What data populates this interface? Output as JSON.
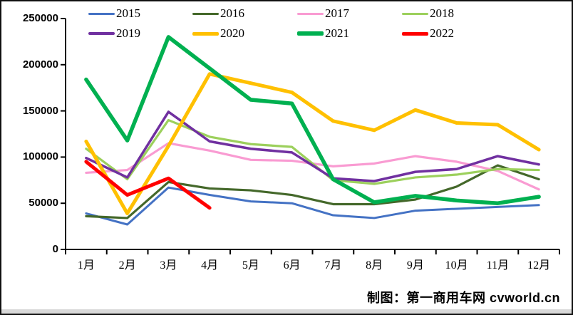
{
  "chart_data": {
    "type": "line",
    "title": "",
    "xlabel": "",
    "ylabel": "",
    "legend_position": "top",
    "grid": false,
    "ylim": [
      0,
      250000
    ],
    "ytick_interval": 50000,
    "ytick_labels": [
      "0",
      "50000",
      "100000",
      "150000",
      "200000",
      "250000"
    ],
    "x_categories": [
      "1月",
      "2月",
      "3月",
      "4月",
      "5月",
      "6月",
      "7月",
      "8月",
      "9月",
      "10月",
      "11月",
      "12月"
    ],
    "series": [
      {
        "name": "2015",
        "color": "#4472C4",
        "line_width": 3,
        "values": [
          39000,
          27000,
          67000,
          59000,
          52000,
          50000,
          37000,
          34000,
          42000,
          44000,
          46000,
          48000
        ]
      },
      {
        "name": "2016",
        "color": "#44682A",
        "line_width": 3.2,
        "values": [
          36000,
          34000,
          73000,
          66000,
          64000,
          59000,
          49000,
          49000,
          54000,
          68000,
          91000,
          76000
        ]
      },
      {
        "name": "2017",
        "color": "#F99BD2",
        "line_width": 3.2,
        "values": [
          83000,
          86000,
          115000,
          107000,
          97000,
          96000,
          90000,
          93000,
          101000,
          95000,
          85000,
          65000
        ]
      },
      {
        "name": "2018",
        "color": "#9CD05C",
        "line_width": 3.2,
        "values": [
          109000,
          76000,
          140000,
          122000,
          114000,
          111000,
          75000,
          71000,
          78000,
          81000,
          87000,
          86000
        ]
      },
      {
        "name": "2019",
        "color": "#7030A0",
        "line_width": 3.5,
        "values": [
          99000,
          78000,
          149000,
          117000,
          109000,
          105000,
          77000,
          74000,
          84000,
          87000,
          101000,
          92000
        ]
      },
      {
        "name": "2020",
        "color": "#FFC000",
        "line_width": 5,
        "values": [
          117000,
          39000,
          112000,
          190000,
          180000,
          170000,
          139000,
          129000,
          151000,
          137000,
          135000,
          108000
        ]
      },
      {
        "name": "2021",
        "color": "#00B050",
        "line_width": 5.5,
        "values": [
          184000,
          118000,
          230000,
          196000,
          162000,
          158000,
          76000,
          51000,
          58000,
          53000,
          50000,
          57000
        ]
      },
      {
        "name": "2022",
        "color": "#FF0000",
        "line_width": 5,
        "values": [
          95000,
          59000,
          77000,
          45000,
          null,
          null,
          null,
          null,
          null,
          null,
          null,
          null
        ]
      }
    ],
    "caption": "制图：第一商用车网  cvworld.cn"
  }
}
